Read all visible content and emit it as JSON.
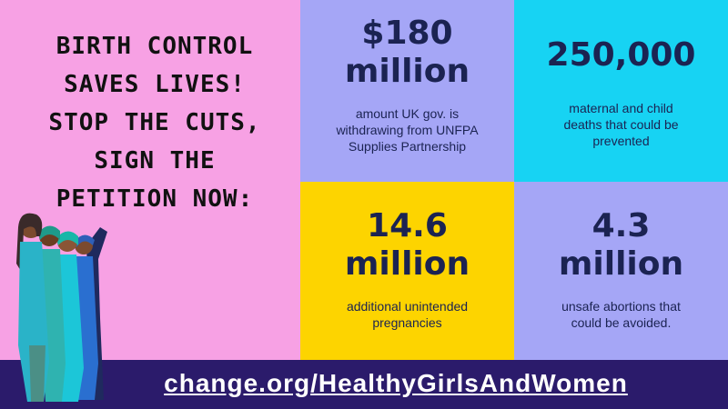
{
  "heading": {
    "lines": [
      "BIRTH CONTROL",
      "SAVES LIVES!",
      "STOP THE CUTS,",
      "SIGN THE",
      "PETITION NOW:"
    ]
  },
  "stats": [
    {
      "value_lines": [
        "$180",
        "million"
      ],
      "description_lines": [
        "amount UK gov. is",
        "withdrawing from UNFPA",
        "Supplies Partnership"
      ]
    },
    {
      "value_lines": [
        "250,000"
      ],
      "description_lines": [
        "maternal and child",
        "deaths that could be",
        "prevented"
      ]
    },
    {
      "value_lines": [
        "14.6",
        "million"
      ],
      "description_lines": [
        "additional unintended",
        "pregnancies"
      ]
    },
    {
      "value_lines": [
        "4.3",
        "million"
      ],
      "description_lines": [
        "unsafe abortions that",
        "could be avoided."
      ]
    }
  ],
  "footer": {
    "link": "change.org/HealthyGirlsAndWomen"
  }
}
